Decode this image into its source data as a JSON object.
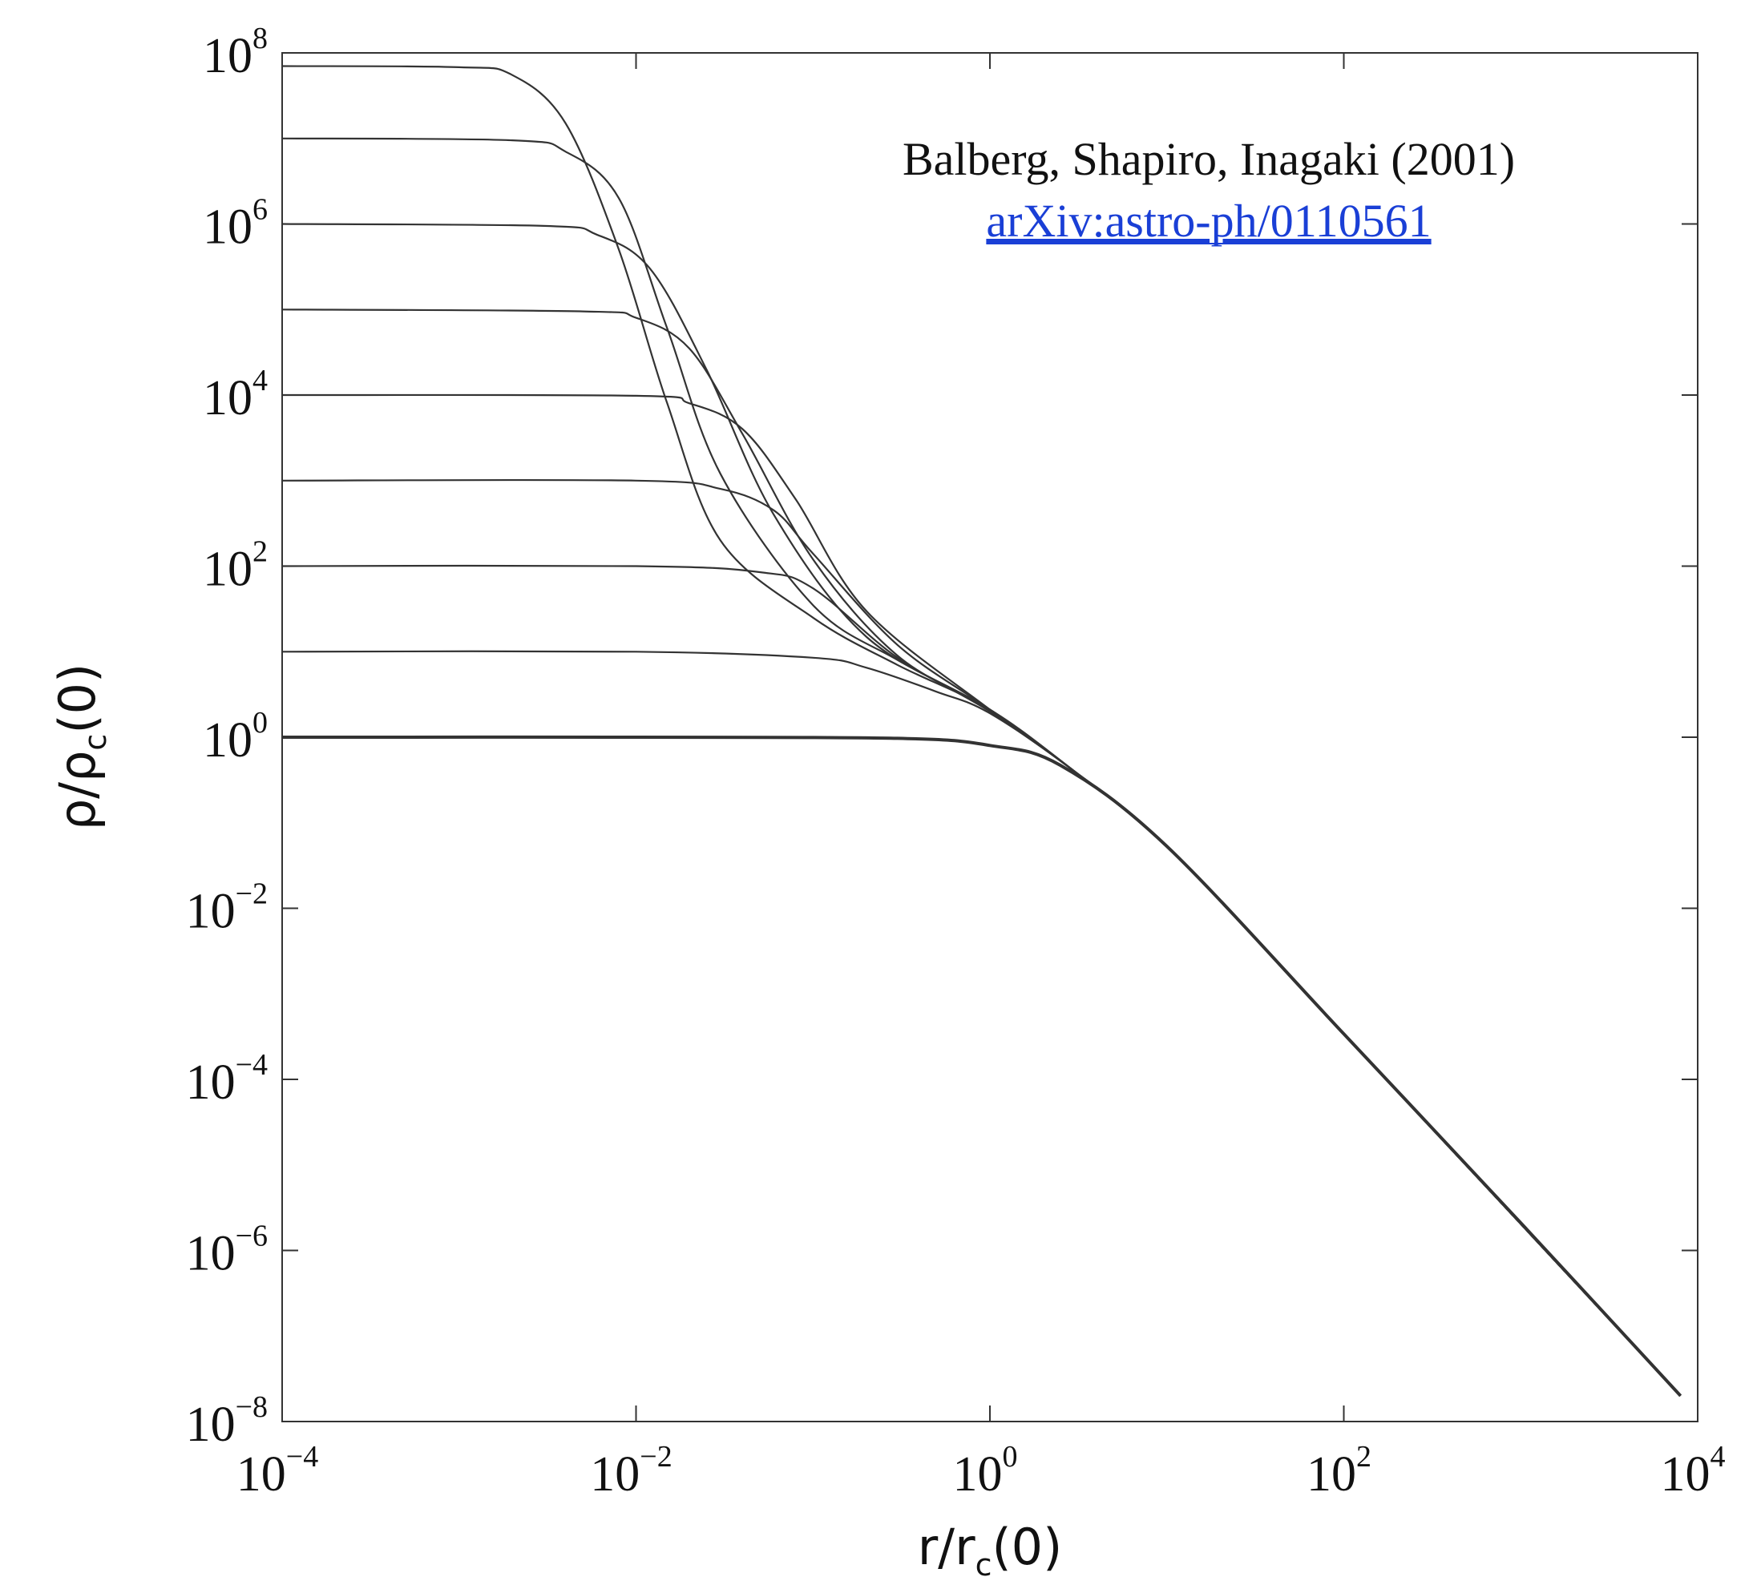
{
  "chart_data": {
    "type": "line",
    "xscale": "log",
    "yscale": "log",
    "xlim": [
      0.0001,
      10000
    ],
    "ylim": [
      1e-08,
      100000000.0
    ],
    "x_ticks": [
      {
        "base": "10",
        "exp": "−4"
      },
      {
        "base": "10",
        "exp": "−2"
      },
      {
        "base": "10",
        "exp": "0"
      },
      {
        "base": "10",
        "exp": "2"
      },
      {
        "base": "10",
        "exp": "4"
      }
    ],
    "y_ticks": [
      {
        "base": "10",
        "exp": "8"
      },
      {
        "base": "10",
        "exp": "6"
      },
      {
        "base": "10",
        "exp": "4"
      },
      {
        "base": "10",
        "exp": "2"
      },
      {
        "base": "10",
        "exp": "0"
      },
      {
        "base": "10",
        "exp": "−2"
      },
      {
        "base": "10",
        "exp": "−4"
      },
      {
        "base": "10",
        "exp": "−6"
      },
      {
        "base": "10",
        "exp": "−8"
      }
    ],
    "xlabel": {
      "main": "r/r",
      "sub": "c",
      "tail": "(0)"
    },
    "ylabel": {
      "main": "ρ/ρ",
      "sub": "c",
      "tail": "(0)"
    },
    "annotation": {
      "citation": "Balberg, Shapiro, Inagaki (2001)",
      "link": "arXiv:astro-ph/0110561"
    },
    "line_color": "#333333",
    "grid": false,
    "series": [
      {
        "central_density": 1,
        "core_radius": 3.0,
        "halo_slope": 2.2,
        "x": [
          0.0001,
          0.01,
          0.3,
          1,
          2.5,
          10,
          100,
          1000,
          8000
        ],
        "y": [
          1,
          1,
          0.97,
          0.8,
          0.47,
          0.053,
          0.00034,
          2.1e-06,
          2e-08
        ]
      },
      {
        "central_density": 10,
        "core_radius": 0.19,
        "x": [
          0.0001,
          0.01,
          0.1,
          0.2,
          0.5,
          1,
          3,
          10,
          100,
          8000
        ],
        "y": [
          10,
          10,
          8.5,
          6.5,
          3.4,
          1.9,
          0.4,
          0.053,
          0.00034,
          2e-08
        ]
      },
      {
        "central_density": 100,
        "core_radius": 0.09,
        "x": [
          0.0001,
          0.01,
          0.05,
          0.1,
          0.3,
          1,
          3,
          10,
          100,
          8000
        ],
        "y": [
          100,
          100,
          85,
          55,
          8.5,
          2.0,
          0.4,
          0.053,
          0.00034,
          2e-08
        ]
      },
      {
        "central_density": 1000,
        "core_radius": 0.045,
        "x": [
          0.0001,
          0.01,
          0.03,
          0.06,
          0.1,
          0.3,
          1,
          3,
          10,
          100,
          8000
        ],
        "y": [
          1000,
          1000,
          800,
          450,
          140,
          12,
          2.1,
          0.4,
          0.053,
          0.00034,
          2e-08
        ]
      },
      {
        "central_density": 10000,
        "core_radius": 0.03,
        "x": [
          0.0001,
          0.01,
          0.02,
          0.04,
          0.08,
          0.2,
          1,
          3,
          10,
          100,
          8000
        ],
        "y": [
          10000,
          9800,
          8000,
          4000,
          600,
          30,
          2.1,
          0.4,
          0.053,
          0.00034,
          2e-08
        ]
      },
      {
        "central_density": 100000,
        "core_radius": 0.02,
        "x": [
          0.0001,
          0.005,
          0.01,
          0.02,
          0.04,
          0.1,
          0.3,
          1,
          3,
          10,
          100,
          8000
        ],
        "y": [
          100000,
          95000,
          80000,
          35000,
          3500,
          120,
          9,
          2.1,
          0.4,
          0.053,
          0.00034,
          2e-08
        ]
      },
      {
        "central_density": 1000000,
        "core_radius": 0.013,
        "x": [
          0.0001,
          0.003,
          0.006,
          0.012,
          0.025,
          0.06,
          0.2,
          1,
          3,
          10,
          100,
          8000
        ],
        "y": [
          1000000,
          950000,
          750000,
          300000,
          20000,
          400,
          15,
          2.1,
          0.4,
          0.053,
          0.00034,
          2e-08
        ]
      },
      {
        "central_density": 10000000,
        "core_radius": 0.009,
        "x": [
          0.0001,
          0.002,
          0.004,
          0.008,
          0.015,
          0.03,
          0.1,
          0.3,
          1,
          3,
          10,
          100,
          8000
        ],
        "y": [
          10000000,
          9500000,
          7000000,
          2000000,
          60000,
          1200,
          35,
          8,
          2.1,
          0.4,
          0.053,
          0.00034,
          2e-08
        ]
      },
      {
        "central_density": 70000000,
        "core_radius": 0.006,
        "x": [
          0.0001,
          0.001,
          0.002,
          0.004,
          0.008,
          0.015,
          0.03,
          0.1,
          0.3,
          1,
          3,
          10,
          100,
          8000
        ],
        "y": [
          70000000,
          68000000,
          55000000,
          15000000,
          500000,
          8000,
          200,
          25,
          7,
          2.1,
          0.4,
          0.053,
          0.00034,
          2e-08
        ]
      }
    ]
  }
}
